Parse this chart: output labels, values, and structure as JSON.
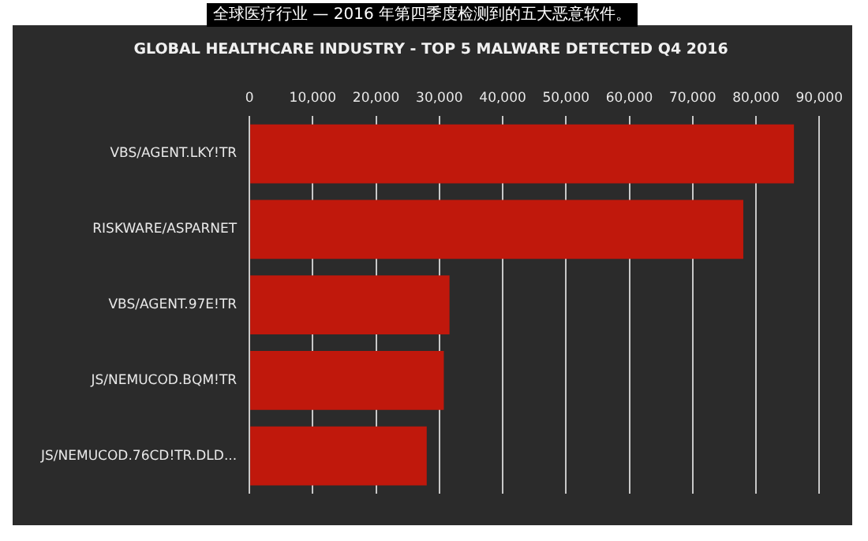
{
  "chart_data": {
    "type": "bar",
    "orientation": "horizontal",
    "title": "全球医疗行业 — 2016 年第四季度检测到的五大恶意软件。",
    "subtitle": "GLOBAL HEALTHCARE INDUSTRY - TOP 5 MALWARE DETECTED Q4 2016",
    "categories": [
      "VBS/AGENT.LKY!TR",
      "RISKWARE/ASPARNET",
      "VBS/AGENT.97E!TR",
      "JS/NEMUCOD.BQM!TR",
      "JS/NEMUCOD.76CD!TR.DLD..."
    ],
    "values": [
      86000,
      78000,
      31600,
      30700,
      28000
    ],
    "color": "#c0180c",
    "xlim": [
      0,
      90000
    ],
    "xticks": [
      {
        "value": 0,
        "label": "0"
      },
      {
        "value": 10000,
        "label": "10,000"
      },
      {
        "value": 20000,
        "label": "20,000"
      },
      {
        "value": 30000,
        "label": "30,000"
      },
      {
        "value": 40000,
        "label": "40,000"
      },
      {
        "value": 50000,
        "label": "50,000"
      },
      {
        "value": 60000,
        "label": "60,000"
      },
      {
        "value": 70000,
        "label": "70,000"
      },
      {
        "value": 80000,
        "label": "80,000"
      },
      {
        "value": 90000,
        "label": "90,000"
      }
    ],
    "grid": "x",
    "legend": false
  }
}
